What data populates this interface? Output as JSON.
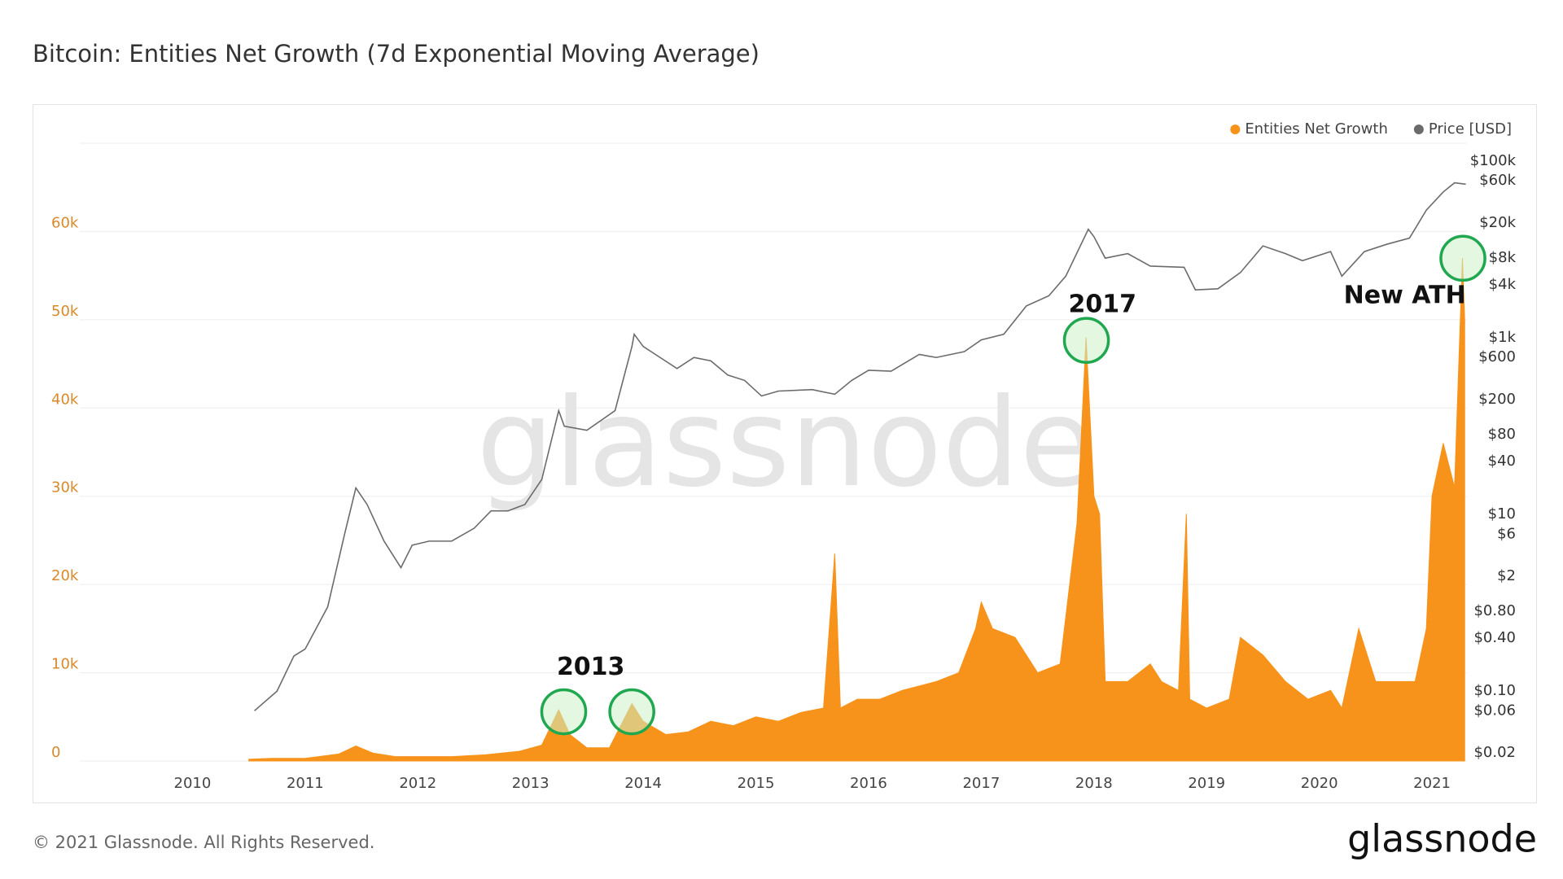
{
  "chart_data": {
    "type": "combo",
    "title": "Bitcoin: Entities Net Growth (7d Exponential Moving Average)",
    "watermark": "glassnode",
    "footer": "© 2021 Glassnode. All Rights Reserved.",
    "logo": "glassnode",
    "legend": "top-right",
    "grid": true,
    "xlim": [
      2009,
      2021.31
    ],
    "xticks": [
      2010,
      2011,
      2012,
      2013,
      2014,
      2015,
      2016,
      2017,
      2018,
      2019,
      2020,
      2021
    ],
    "ylim": [
      0,
      70000
    ],
    "yticks": [
      0,
      {
        "value": 10000,
        "label": "10k"
      },
      {
        "value": 20000,
        "label": "20k"
      },
      {
        "value": 30000,
        "label": "30k"
      },
      {
        "value": 40000,
        "label": "40k"
      },
      {
        "value": 50000,
        "label": "50k"
      },
      {
        "value": 60000,
        "label": "60k"
      }
    ],
    "y2log": true,
    "y2lim": [
      0.0162,
      160000
    ],
    "y2ticks": [
      {
        "value": 100000,
        "label": "$100k"
      },
      {
        "value": 60000,
        "label": "$60k"
      },
      {
        "value": 20000,
        "label": "$20k"
      },
      {
        "value": 8000,
        "label": "$8k"
      },
      {
        "value": 4000,
        "label": "$4k"
      },
      {
        "value": 1000,
        "label": "$1k"
      },
      {
        "value": 600,
        "label": "$600"
      },
      {
        "value": 200,
        "label": "$200"
      },
      {
        "value": 80,
        "label": "$80"
      },
      {
        "value": 40,
        "label": "$40"
      },
      {
        "value": 10,
        "label": "$10"
      },
      {
        "value": 6,
        "label": "$6"
      },
      {
        "value": 2,
        "label": "$2"
      },
      {
        "value": 0.8,
        "label": "$0.80"
      },
      {
        "value": 0.4,
        "label": "$0.40"
      },
      {
        "value": 0.1,
        "label": "$0.10"
      },
      {
        "value": 0.06,
        "label": "$0.06"
      },
      {
        "value": 0.02,
        "label": "$0.02"
      }
    ],
    "series": [
      {
        "name": "Entities Net Growth",
        "type": "area",
        "color": "#f7931a",
        "x": [
          2010.5,
          2010.7,
          2011.0,
          2011.3,
          2011.45,
          2011.6,
          2011.8,
          2012.0,
          2012.3,
          2012.6,
          2012.9,
          2013.1,
          2013.25,
          2013.35,
          2013.5,
          2013.7,
          2013.9,
          2014.0,
          2014.2,
          2014.4,
          2014.6,
          2014.8,
          2015.0,
          2015.2,
          2015.4,
          2015.6,
          2015.7,
          2015.75,
          2015.9,
          2016.1,
          2016.3,
          2016.6,
          2016.8,
          2016.95,
          2017.0,
          2017.1,
          2017.3,
          2017.5,
          2017.7,
          2017.85,
          2017.93,
          2018.0,
          2018.05,
          2018.1,
          2018.3,
          2018.5,
          2018.6,
          2018.75,
          2018.82,
          2018.85,
          2019.0,
          2019.2,
          2019.3,
          2019.5,
          2019.7,
          2019.9,
          2020.1,
          2020.2,
          2020.35,
          2020.5,
          2020.7,
          2020.85,
          2020.95,
          2021.0,
          2021.1,
          2021.2,
          2021.27,
          2021.29
        ],
        "values": [
          200,
          300,
          300,
          800,
          1700,
          900,
          500,
          500,
          500,
          700,
          1100,
          1800,
          5800,
          3000,
          1500,
          1500,
          6500,
          4500,
          3000,
          3300,
          4500,
          4000,
          5000,
          4500,
          5500,
          6000,
          23500,
          6000,
          7000,
          7000,
          8000,
          9000,
          10000,
          15000,
          18000,
          15000,
          14000,
          10000,
          11000,
          27000,
          48000,
          30000,
          28000,
          9000,
          9000,
          11000,
          9000,
          8000,
          28000,
          7000,
          6000,
          7000,
          14000,
          12000,
          9000,
          7000,
          8000,
          6000,
          15000,
          9000,
          9000,
          9000,
          15000,
          30000,
          36000,
          31000,
          57000,
          50000
        ]
      },
      {
        "name": "Price [USD]",
        "type": "line",
        "axis": "y2",
        "color": "#6b6b6b",
        "x": [
          2010.55,
          2010.75,
          2010.9,
          2011.0,
          2011.2,
          2011.35,
          2011.45,
          2011.55,
          2011.7,
          2011.85,
          2011.95,
          2012.1,
          2012.3,
          2012.5,
          2012.65,
          2012.8,
          2012.95,
          2013.1,
          2013.25,
          2013.3,
          2013.5,
          2013.75,
          2013.9,
          2013.92,
          2014.0,
          2014.15,
          2014.3,
          2014.45,
          2014.6,
          2014.75,
          2014.9,
          2015.05,
          2015.2,
          2015.5,
          2015.7,
          2015.85,
          2016.0,
          2016.2,
          2016.45,
          2016.6,
          2016.85,
          2017.0,
          2017.2,
          2017.4,
          2017.6,
          2017.75,
          2017.95,
          2018.0,
          2018.1,
          2018.3,
          2018.5,
          2018.8,
          2018.9,
          2019.1,
          2019.3,
          2019.5,
          2019.7,
          2019.85,
          2020.1,
          2020.2,
          2020.4,
          2020.6,
          2020.8,
          2020.95,
          2021.1,
          2021.2,
          2021.3
        ],
        "values": [
          0.06,
          0.1,
          0.25,
          0.3,
          0.9,
          6,
          20,
          13,
          5,
          2.5,
          4.5,
          5,
          5,
          7,
          11,
          11,
          13,
          25,
          150,
          100,
          90,
          150,
          800,
          1100,
          800,
          600,
          450,
          600,
          550,
          380,
          330,
          220,
          250,
          260,
          230,
          330,
          430,
          420,
          650,
          600,
          700,
          950,
          1100,
          2300,
          3000,
          5000,
          17000,
          14000,
          8000,
          9000,
          6500,
          6300,
          3500,
          3600,
          5500,
          11000,
          9000,
          7500,
          9500,
          5000,
          9500,
          11500,
          13500,
          28000,
          45000,
          57000,
          55000
        ]
      }
    ],
    "annotations": [
      "2013",
      "2017",
      "New ATH"
    ]
  }
}
